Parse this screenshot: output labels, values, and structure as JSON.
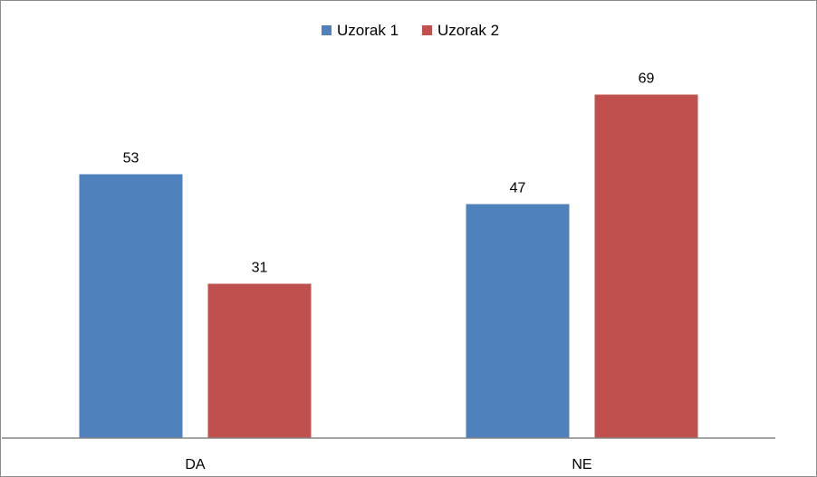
{
  "chart_data": {
    "type": "bar",
    "categories": [
      "DA",
      "NE"
    ],
    "series": [
      {
        "name": "Uzorak 1",
        "color": "#4F81BD",
        "values": [
          53,
          47
        ]
      },
      {
        "name": "Uzorak 2",
        "color": "#C0504D",
        "values": [
          31,
          69
        ]
      }
    ],
    "ylim": [
      0,
      80
    ],
    "grid": false,
    "y_axis_visible": false,
    "data_labels": true,
    "legend_position": "top"
  }
}
